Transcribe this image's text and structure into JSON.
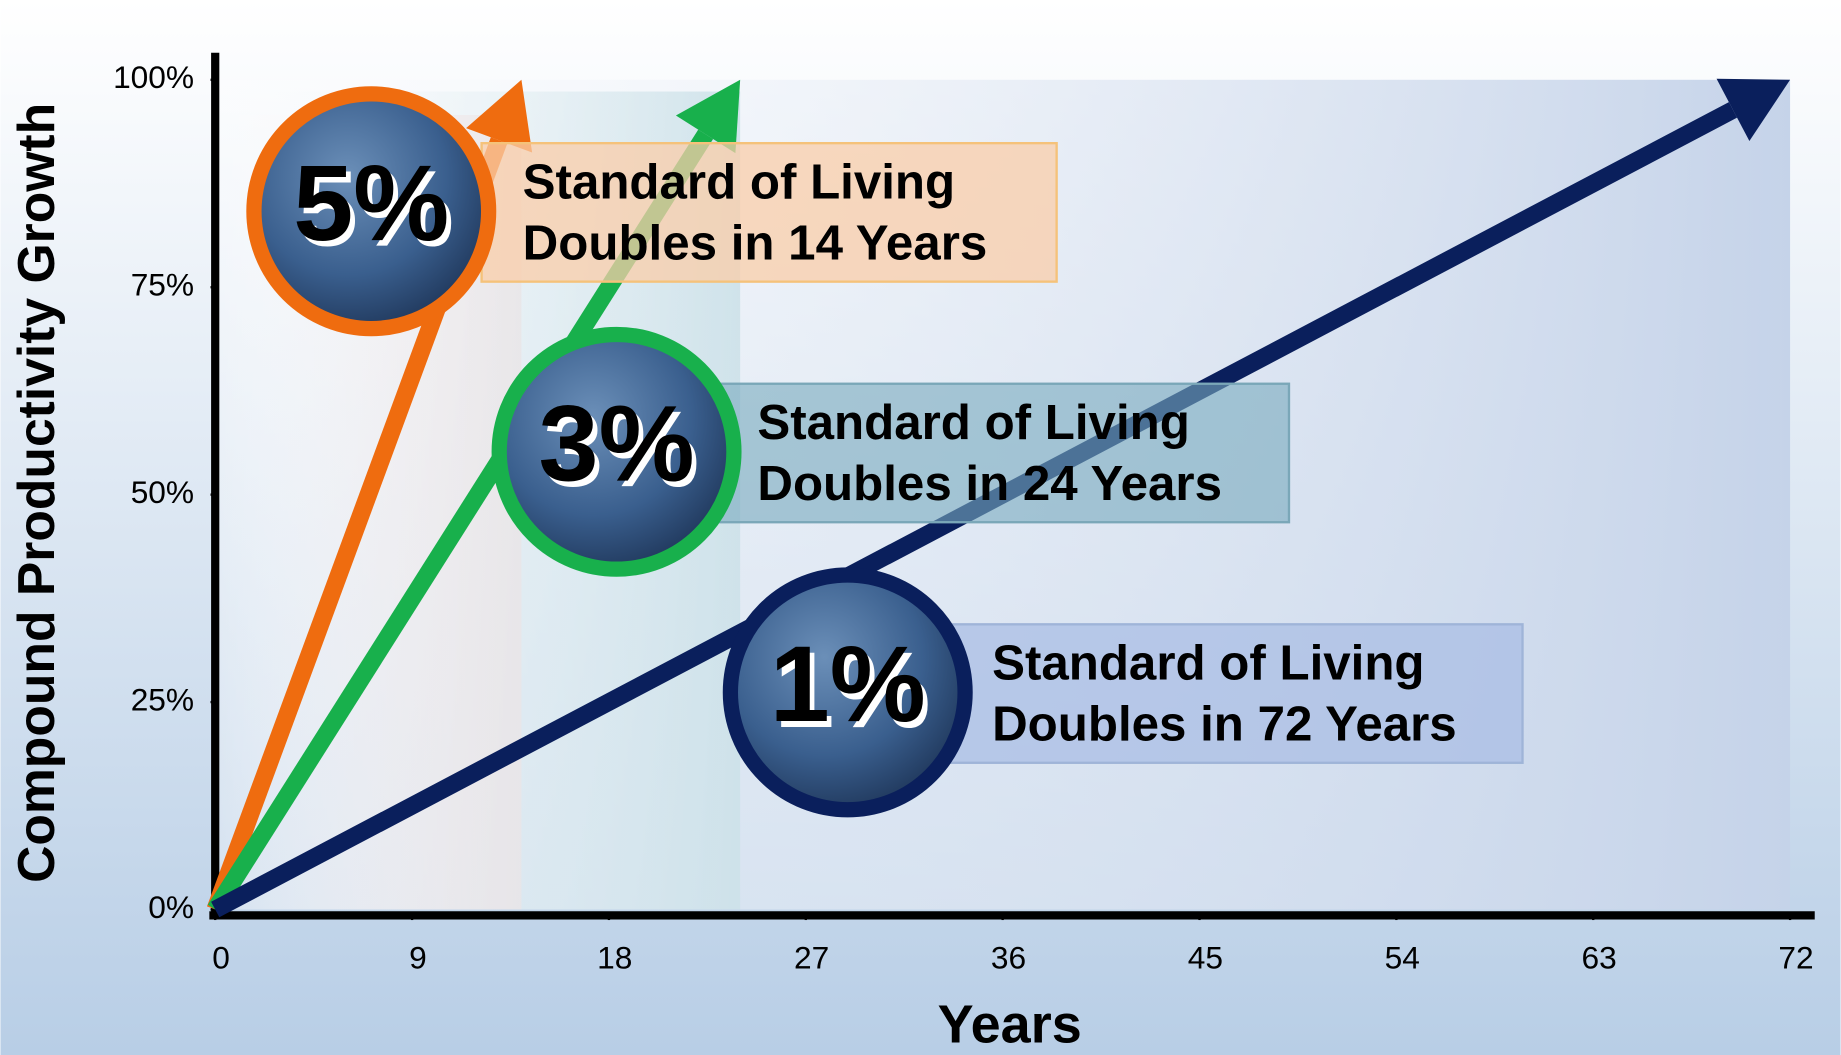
{
  "chart_data": {
    "type": "line",
    "x_label": "Years",
    "y_label": "Compound Productivity Growth",
    "xlim": [
      0,
      72
    ],
    "xticks": [
      0,
      9,
      18,
      27,
      36,
      45,
      54,
      63,
      72
    ],
    "ylim": [
      0,
      100
    ],
    "yticks": [
      {
        "value": 0,
        "label": "0%"
      },
      {
        "value": 25,
        "label": "25%"
      },
      {
        "value": 50,
        "label": "50%"
      },
      {
        "value": 75,
        "label": "75%"
      },
      {
        "value": 100,
        "label": "100%"
      }
    ],
    "grid": false,
    "series": [
      {
        "name": "5%",
        "color": "#ef6c0f",
        "x": [
          0,
          14
        ],
        "values": [
          0,
          100
        ],
        "label": [
          "Standard of Living",
          "Doubles in 14 Years"
        ]
      },
      {
        "name": "3%",
        "color": "#18b04c",
        "x": [
          0,
          24
        ],
        "values": [
          0,
          100
        ],
        "label": [
          "Standard of Living",
          "Doubles in 24 Years"
        ]
      },
      {
        "name": "1%",
        "color": "#0a1f5c",
        "x": [
          0,
          72
        ],
        "values": [
          0,
          100
        ],
        "label": [
          "Standard of Living",
          "Doubles in 72 Years"
        ]
      }
    ]
  }
}
